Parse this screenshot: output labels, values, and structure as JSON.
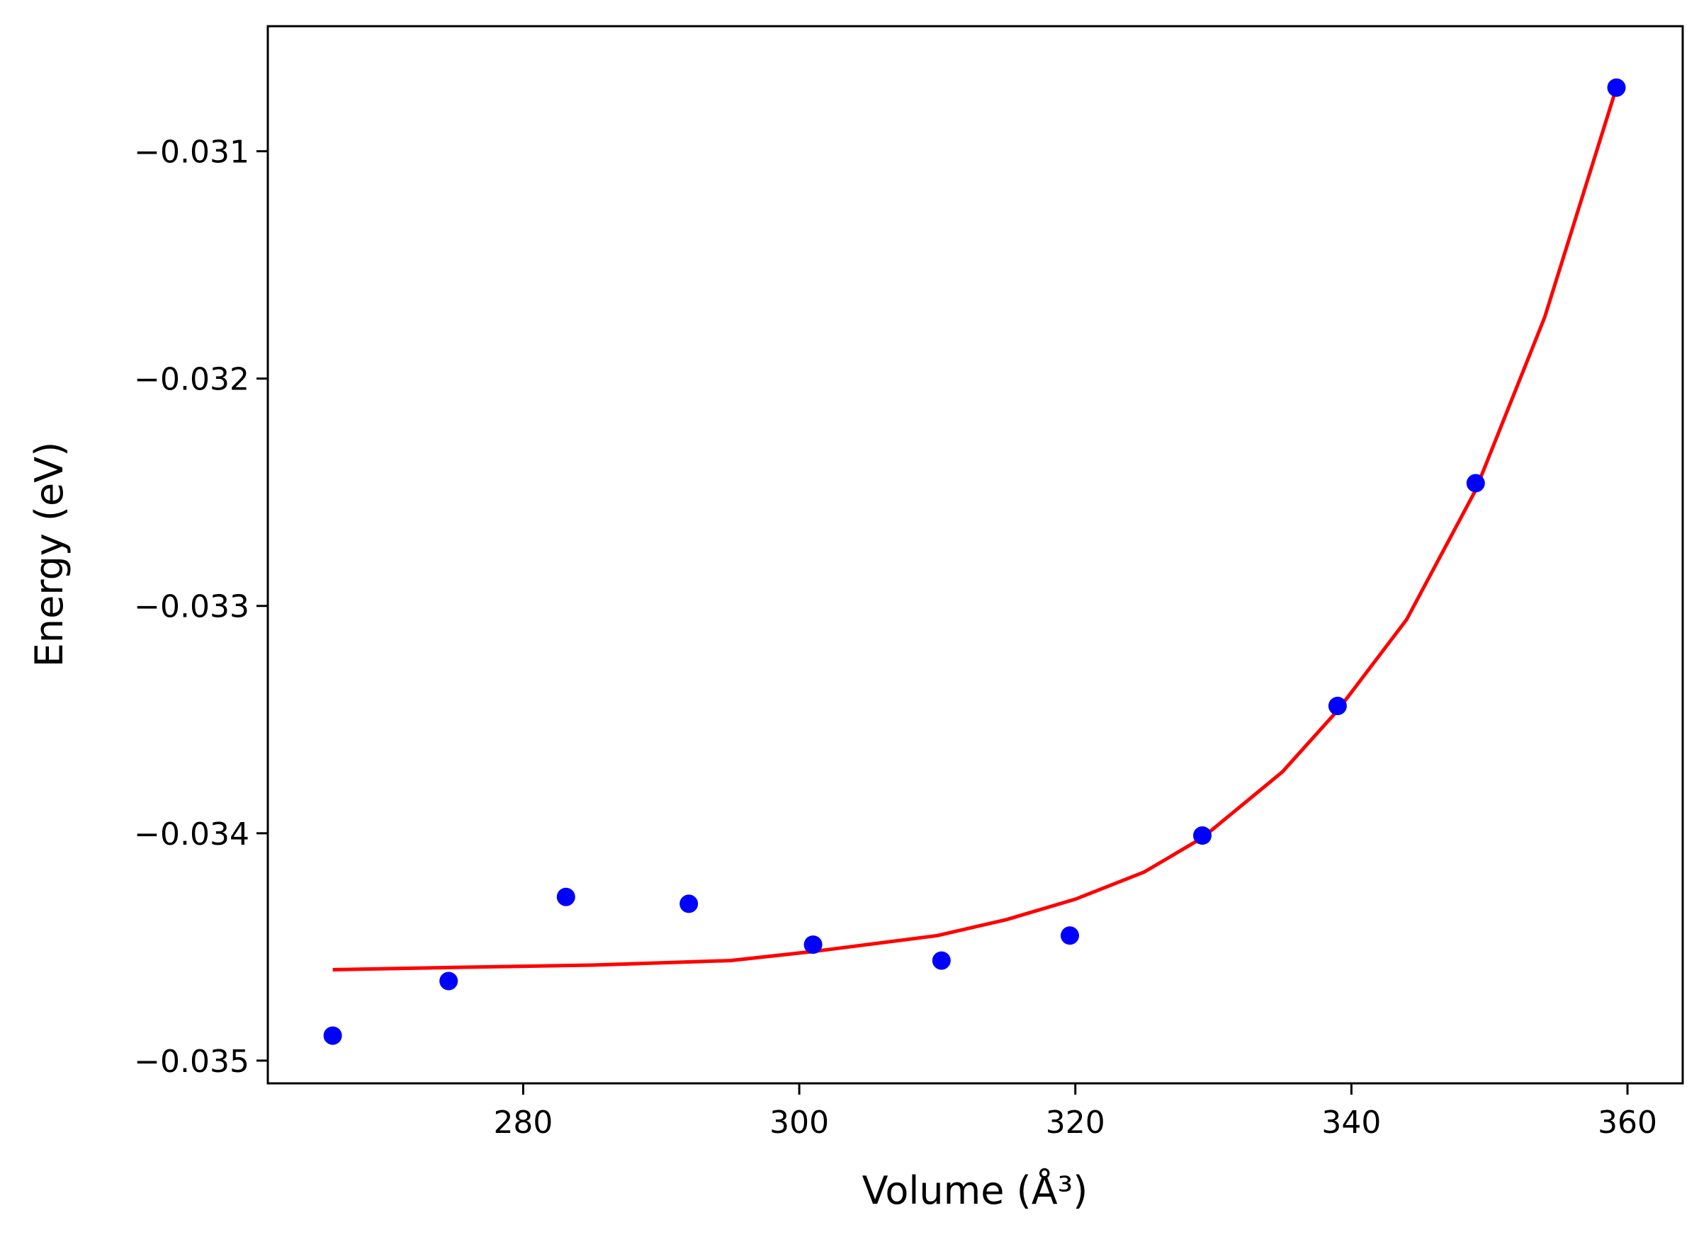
{
  "chart_data": {
    "type": "scatter",
    "xlabel": "Volume (Å³)",
    "ylabel": "Energy (eV)",
    "xlim": [
      261.5,
      364
    ],
    "ylim": [
      -0.0351,
      -0.03045
    ],
    "x_ticks": [
      "280",
      "300",
      "320",
      "340",
      "360"
    ],
    "y_ticks": [
      "−0.031",
      "−0.032",
      "−0.033",
      "−0.034",
      "−0.035"
    ],
    "grid": false,
    "colors": {
      "points": "#0000ff",
      "fit": "#ff0000"
    },
    "series": [
      {
        "kind": "points",
        "x": [
          266.2,
          274.6,
          283.1,
          292.0,
          301.0,
          310.3,
          319.6,
          329.2,
          339.0,
          349.0,
          359.2
        ],
        "y": [
          -0.03489,
          -0.03465,
          -0.03428,
          -0.03431,
          -0.03449,
          -0.03456,
          -0.03445,
          -0.03401,
          -0.03344,
          -0.03246,
          -0.03072
        ]
      },
      {
        "kind": "fit",
        "x": [
          266.2,
          275,
          285,
          295,
          301,
          310,
          315,
          320,
          325,
          329.2,
          335,
          339,
          344,
          349,
          354,
          359.2
        ],
        "y": [
          -0.0346,
          -0.03459,
          -0.03458,
          -0.03456,
          -0.03452,
          -0.03445,
          -0.03438,
          -0.03429,
          -0.03417,
          -0.03402,
          -0.03373,
          -0.03346,
          -0.03306,
          -0.03249,
          -0.03173,
          -0.03072
        ]
      }
    ]
  }
}
